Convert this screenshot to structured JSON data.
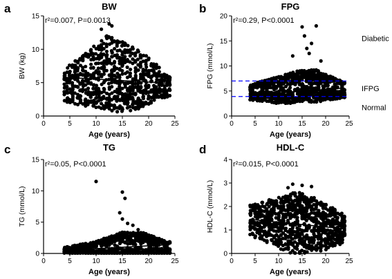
{
  "chart_data": [
    {
      "id": "a",
      "type": "scatter",
      "panel_letter": "a",
      "title": "BW",
      "xlabel": "Age (years)",
      "ylabel": "BW (kg)",
      "stat_text": "r²=0.007, P=0.0013",
      "xlim": [
        0,
        25
      ],
      "ylim": [
        0,
        15
      ],
      "xticks": [
        0,
        5,
        10,
        15,
        20,
        25
      ],
      "yticks": [
        0,
        5,
        10,
        15
      ],
      "age_range": [
        4,
        24
      ],
      "y_profile": {
        "center": [
          [
            4,
            4.5
          ],
          [
            8,
            5.5
          ],
          [
            12,
            6.5
          ],
          [
            14,
            6.0
          ],
          [
            18,
            5.5
          ],
          [
            22,
            5.0
          ],
          [
            24,
            4.5
          ]
        ],
        "spread": [
          [
            4,
            2.5
          ],
          [
            8,
            4.0
          ],
          [
            12,
            5.5
          ],
          [
            14,
            5.5
          ],
          [
            18,
            4.5
          ],
          [
            22,
            2.5
          ],
          [
            24,
            1.5
          ]
        ],
        "skew": 1.0
      },
      "outliers": [
        [
          12.5,
          13.8
        ],
        [
          13,
          13.5
        ],
        [
          11,
          13.0
        ]
      ],
      "fit_line": {
        "x": [
          4,
          24
        ],
        "y": [
          5.8,
          4.9
        ]
      },
      "ref_lines": [],
      "zones": [],
      "grid": false
    },
    {
      "id": "b",
      "type": "scatter",
      "panel_letter": "b",
      "title": "FPG",
      "xlabel": "Age (years)",
      "ylabel": "FPG (mmol/L)",
      "stat_text": "r²=0.29, P<0.0001",
      "xlim": [
        0,
        25
      ],
      "ylim": [
        0,
        20
      ],
      "xticks": [
        0,
        5,
        10,
        15,
        20,
        25
      ],
      "yticks": [
        0,
        5,
        10,
        15,
        20
      ],
      "age_range": [
        4,
        24
      ],
      "y_profile": {
        "center": [
          [
            4,
            4.6
          ],
          [
            10,
            5.0
          ],
          [
            14,
            5.6
          ],
          [
            18,
            5.8
          ],
          [
            24,
            5.0
          ]
        ],
        "spread": [
          [
            4,
            1.5
          ],
          [
            10,
            2.5
          ],
          [
            14,
            3.0
          ],
          [
            18,
            3.0
          ],
          [
            24,
            1.5
          ]
        ],
        "skew": 1.8
      },
      "outliers": [
        [
          15,
          17.8
        ],
        [
          18,
          18.0
        ],
        [
          16,
          13.5
        ],
        [
          17,
          14.5
        ],
        [
          16.5,
          12.5
        ],
        [
          19,
          11.0
        ],
        [
          13,
          12.0
        ],
        [
          15.5,
          16.0
        ]
      ],
      "fit_line": {
        "x": [
          4,
          24
        ],
        "y": [
          4.2,
          5.6
        ]
      },
      "ref_lines": [
        {
          "y": 7.0,
          "color": "#0000ff"
        },
        {
          "y": 3.9,
          "color": "#0000ff"
        }
      ],
      "zones": [
        {
          "label": "Diabetic",
          "y": 15.5
        },
        {
          "label": "IFPG",
          "y": 5.5
        },
        {
          "label": "Normal",
          "y": 1.7
        }
      ],
      "grid": false
    },
    {
      "id": "c",
      "type": "scatter",
      "panel_letter": "c",
      "title": "TG",
      "xlabel": "Age (years)",
      "ylabel": "TG (mmol/L)",
      "stat_text": "r²=0.05, P<0.0001",
      "xlim": [
        0,
        25
      ],
      "ylim": [
        0,
        15
      ],
      "xticks": [
        0,
        5,
        10,
        15,
        20,
        25
      ],
      "yticks": [
        0,
        5,
        10,
        15
      ],
      "age_range": [
        4,
        24
      ],
      "y_profile": {
        "center": [
          [
            4,
            0.4
          ],
          [
            10,
            0.6
          ],
          [
            15,
            0.9
          ],
          [
            19,
            1.0
          ],
          [
            24,
            0.7
          ]
        ],
        "spread": [
          [
            4,
            0.5
          ],
          [
            10,
            1.2
          ],
          [
            15,
            2.2
          ],
          [
            19,
            2.0
          ],
          [
            24,
            1.0
          ]
        ],
        "skew": 2.0
      },
      "outliers": [
        [
          10,
          11.5
        ],
        [
          15,
          9.8
        ],
        [
          15.5,
          8.8
        ],
        [
          14.5,
          6.5
        ],
        [
          15,
          5.5
        ],
        [
          16,
          4.8
        ],
        [
          17,
          4.5
        ],
        [
          18,
          3.8
        ]
      ],
      "fit_line": {
        "x": [
          4,
          24
        ],
        "y": [
          0.5,
          1.4
        ]
      },
      "ref_lines": [],
      "zones": [],
      "grid": false
    },
    {
      "id": "d",
      "type": "scatter",
      "panel_letter": "d",
      "title": "HDL-C",
      "xlabel": "Age (years)",
      "ylabel": "HDL-C (mmol/L)",
      "stat_text": "r²=0.015, P<0.0001",
      "xlim": [
        0,
        25
      ],
      "ylim": [
        0,
        4
      ],
      "xticks": [
        0,
        5,
        10,
        15,
        20,
        25
      ],
      "yticks": [
        0,
        1,
        2,
        3,
        4
      ],
      "age_range": [
        4,
        24
      ],
      "y_profile": {
        "center": [
          [
            4,
            1.4
          ],
          [
            10,
            1.3
          ],
          [
            14,
            1.3
          ],
          [
            20,
            1.15
          ],
          [
            24,
            1.05
          ]
        ],
        "spread": [
          [
            4,
            0.65
          ],
          [
            10,
            1.1
          ],
          [
            14,
            1.4
          ],
          [
            20,
            1.0
          ],
          [
            24,
            0.6
          ]
        ],
        "skew": 1.0
      },
      "outliers": [
        [
          13,
          2.95
        ],
        [
          15,
          2.9
        ],
        [
          17,
          2.85
        ],
        [
          12,
          2.8
        ]
      ],
      "fit_line": {
        "x": [
          4,
          24
        ],
        "y": [
          1.45,
          1.05
        ]
      },
      "ref_lines": [],
      "zones": [],
      "grid": false
    }
  ]
}
